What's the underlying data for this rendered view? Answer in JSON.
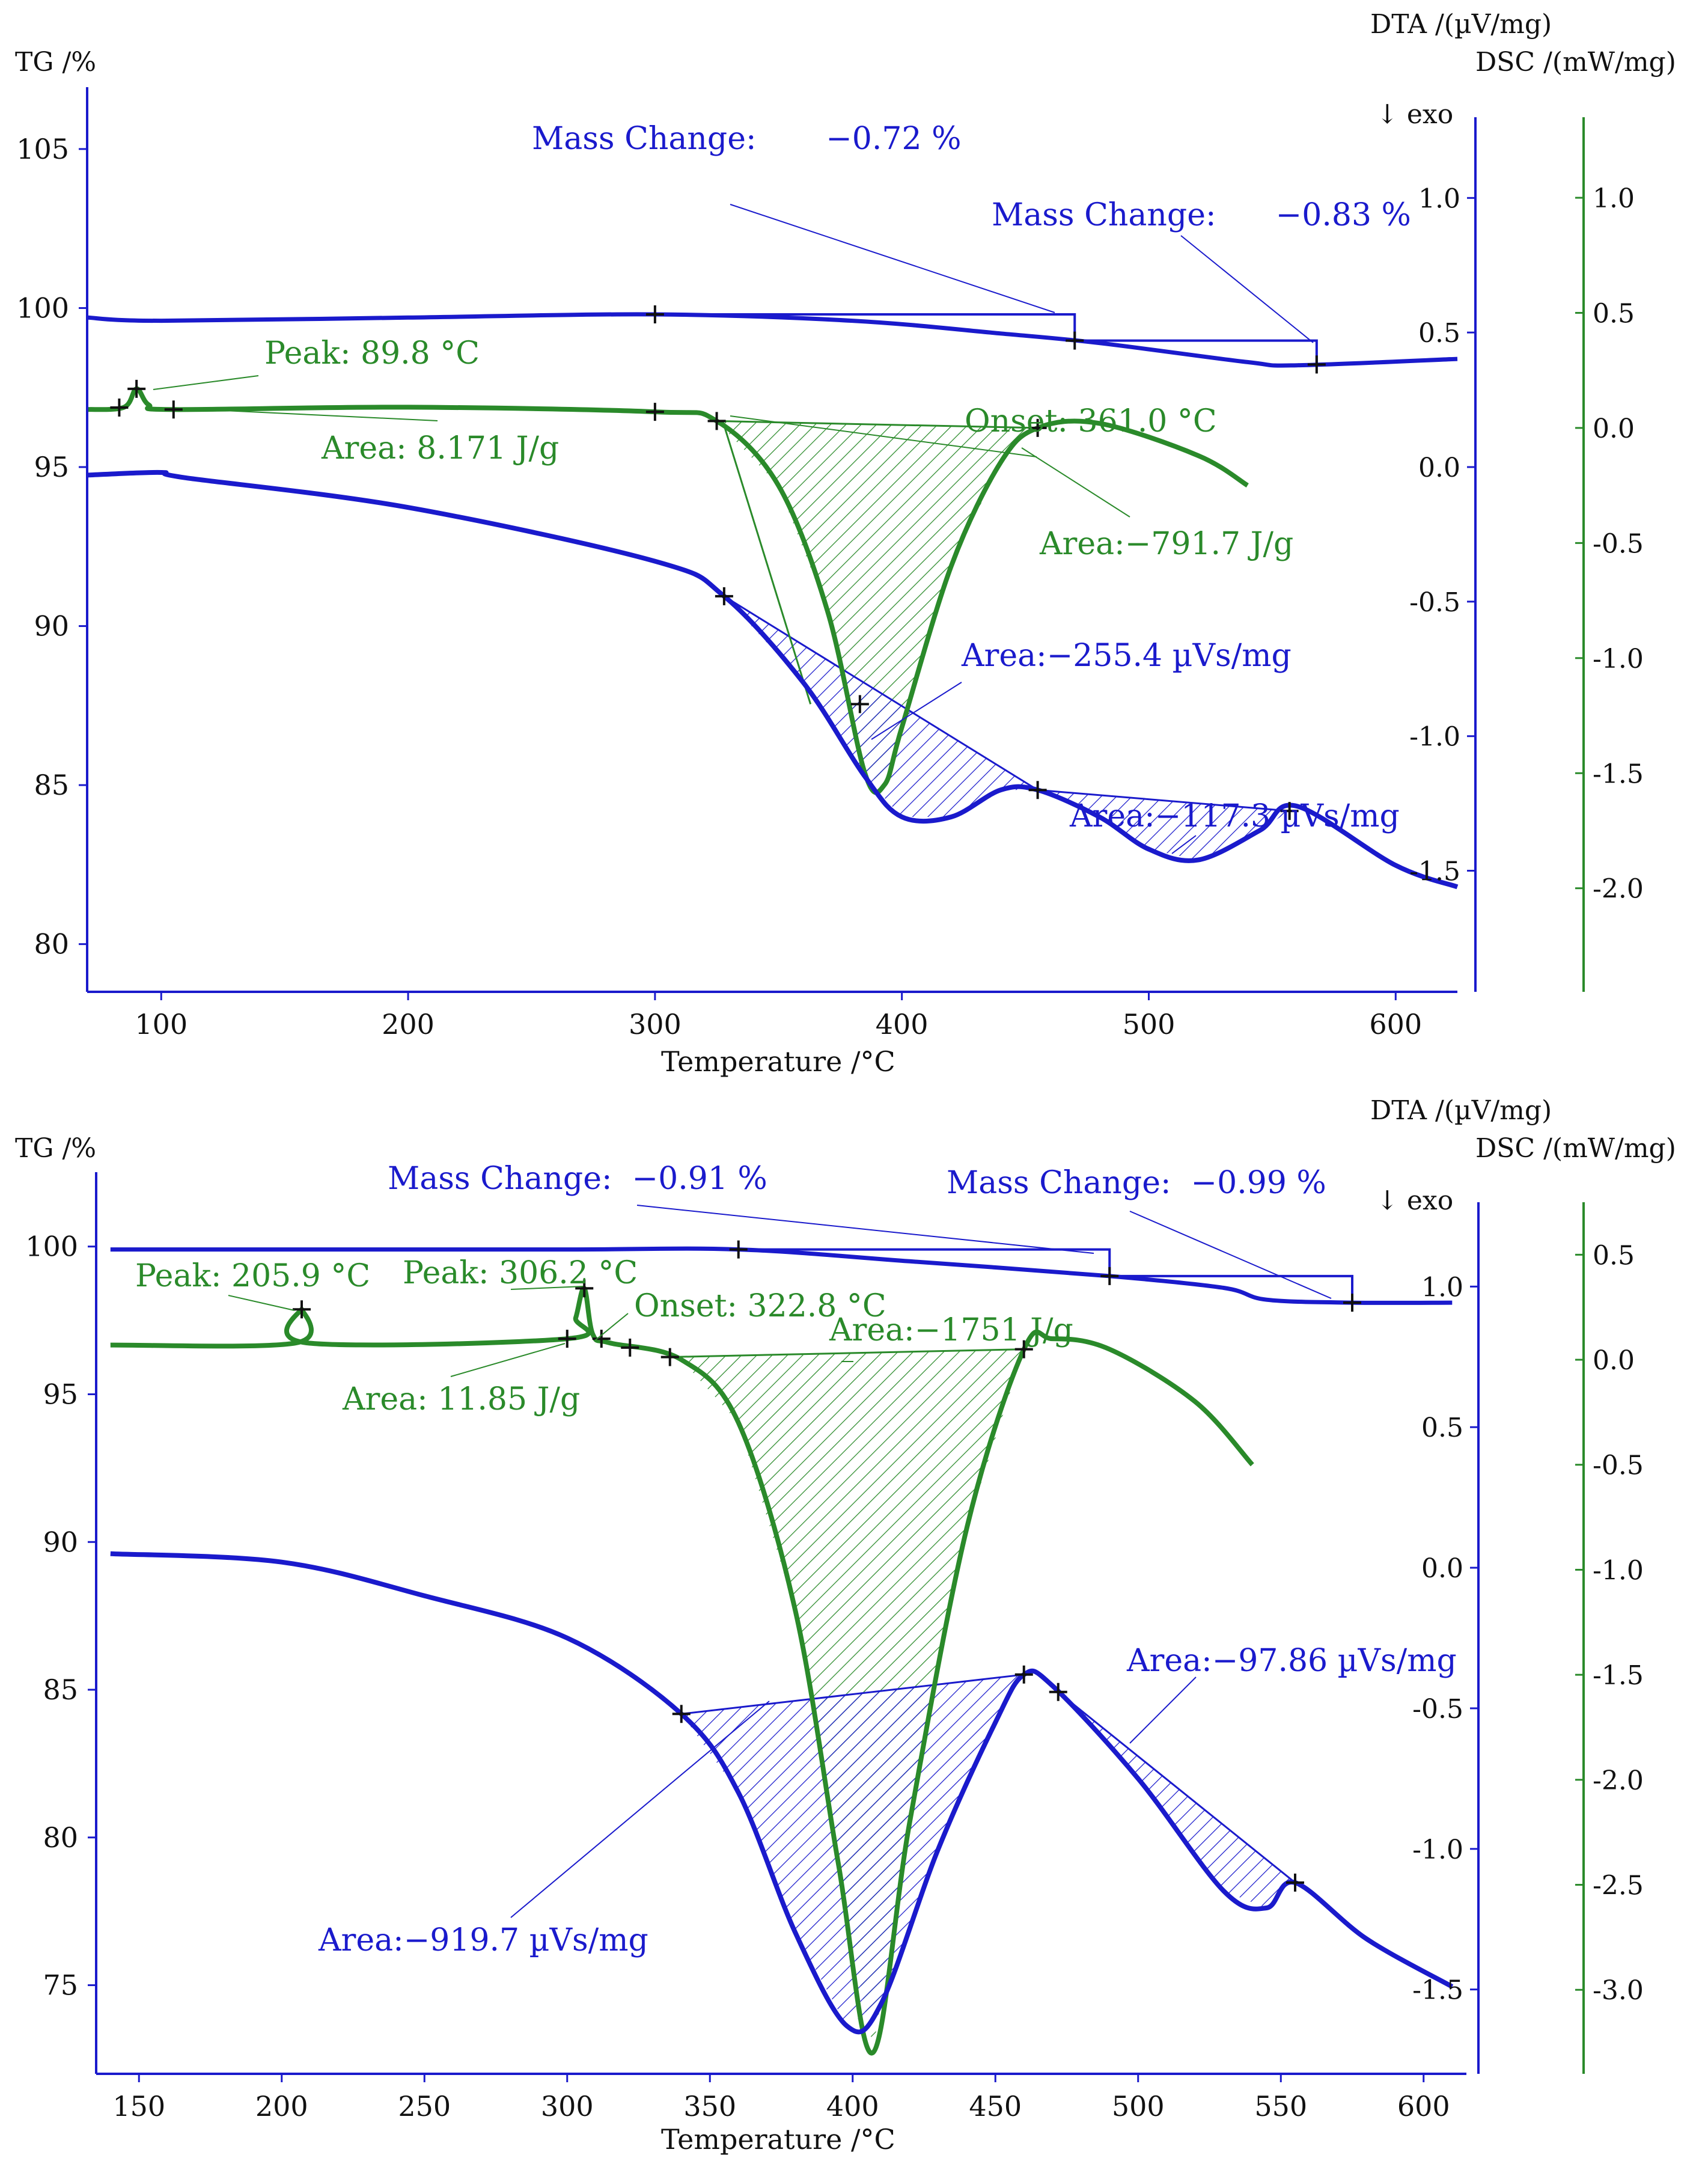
{
  "colors": {
    "tg": "#1a1acc",
    "dta": "#1a1acc",
    "dsc": "#2a8a2a",
    "black": "#111111"
  },
  "chart_data": [
    {
      "type": "line",
      "xlabel": "Temperature /°C",
      "ylabel_left": "TG /%",
      "ylabel_right1": "DTA /(µV/mg)",
      "ylabel_right2": "DSC /(mW/mg)",
      "exo_label": "↓ exo",
      "xlim": [
        70,
        625
      ],
      "tg_ylim": [
        78.5,
        106
      ],
      "dta_ylim": [
        -1.95,
        1.3
      ],
      "dsc_ylim": [
        -2.45,
        1.35
      ],
      "x_ticks": [
        100,
        200,
        300,
        400,
        500,
        600
      ],
      "tg_ticks": [
        80,
        85,
        90,
        95,
        100,
        105
      ],
      "dta_ticks": [
        -1.5,
        -1.0,
        -0.5,
        0.0,
        0.5,
        1.0
      ],
      "dsc_ticks": [
        -2.0,
        -1.5,
        -1.0,
        -0.5,
        0.0,
        0.5,
        1.0
      ],
      "tick_labels": {
        "x": [
          "100",
          "200",
          "300",
          "400",
          "500",
          "600"
        ],
        "tg": [
          "80",
          "85",
          "90",
          "95",
          "100",
          "105"
        ],
        "dta": [
          "-1.5",
          "-1.0",
          "-0.5",
          "0.0",
          "0.5",
          "1.0"
        ],
        "dsc": [
          "-2.0",
          "-1.5",
          "-1.0",
          "-0.5",
          "0.0",
          "0.5",
          "1.0"
        ]
      },
      "tg": {
        "x": [
          70,
          100,
          200,
          300,
          380,
          440,
          480,
          540,
          560,
          625
        ],
        "y": [
          99.7,
          99.6,
          99.7,
          99.8,
          99.6,
          99.2,
          98.9,
          98.3,
          98.2,
          98.4
        ]
      },
      "dsc": {
        "x": [
          70,
          85,
          90,
          95,
          105,
          200,
          300,
          325,
          350,
          370,
          385,
          393,
          400,
          420,
          440,
          455,
          480,
          520,
          540
        ],
        "y": [
          0.08,
          0.09,
          0.17,
          0.1,
          0.08,
          0.09,
          0.07,
          0.03,
          -0.25,
          -0.8,
          -1.5,
          -1.55,
          -1.3,
          -0.6,
          -0.15,
          0.0,
          0.02,
          -0.12,
          -0.25
        ]
      },
      "dta": {
        "x": [
          70,
          100,
          110,
          200,
          300,
          328,
          360,
          385,
          400,
          420,
          440,
          455,
          480,
          500,
          520,
          545,
          560,
          600,
          625
        ],
        "y": [
          -0.03,
          -0.02,
          -0.04,
          -0.15,
          -0.35,
          -0.48,
          -0.8,
          -1.15,
          -1.3,
          -1.3,
          -1.2,
          -1.2,
          -1.3,
          -1.42,
          -1.46,
          -1.35,
          -1.26,
          -1.48,
          -1.56
        ]
      },
      "annotations": {
        "mass1": "Mass Change:       −0.72 %",
        "mass2": "Mass Change:      −0.83 %",
        "peak": "Peak: 89.8 °C",
        "area_dsc1": "Area: 8.171 J/g",
        "onset": "Onset: 361.0 °C",
        "area_dsc2": "Area:−791.7 J/g",
        "area_dta1": "Area:−255.4 µVs/mg",
        "area_dta2": "Area:−117.3 µVs/mg"
      }
    },
    {
      "type": "line",
      "xlabel": "Temperature /°C",
      "ylabel_left": "TG /%",
      "ylabel_right1": "DTA /(µV/mg)",
      "ylabel_right2": "DSC /(mW/mg)",
      "exo_label": "↓ exo",
      "xlim": [
        135,
        615
      ],
      "tg_ylim": [
        72,
        101.5
      ],
      "dta_ylim": [
        -1.8,
        1.3
      ],
      "dsc_ylim": [
        -3.4,
        0.75
      ],
      "x_ticks": [
        150,
        200,
        250,
        300,
        350,
        400,
        450,
        500,
        550,
        600
      ],
      "tg_ticks": [
        75,
        80,
        85,
        90,
        95,
        100
      ],
      "dta_ticks": [
        -1.5,
        -1.0,
        -0.5,
        0.0,
        0.5,
        1.0
      ],
      "dsc_ticks": [
        -3.0,
        -2.5,
        -2.0,
        -1.5,
        -1.0,
        -0.5,
        0.0,
        0.5
      ],
      "tick_labels": {
        "x": [
          "150",
          "200",
          "250",
          "300",
          "350",
          "400",
          "450",
          "500",
          "550",
          "600"
        ],
        "tg": [
          "75",
          "80",
          "85",
          "90",
          "95",
          "100"
        ],
        "dta": [
          "-1.5",
          "-1.0",
          "-0.5",
          "0.0",
          "0.5",
          "1.0"
        ],
        "dsc": [
          "-3.0",
          "-2.5",
          "-2.0",
          "-1.5",
          "-1.0",
          "-0.5",
          "0.0",
          "0.5"
        ]
      },
      "tg": {
        "x": [
          140,
          200,
          300,
          360,
          420,
          490,
          530,
          545,
          575,
          610
        ],
        "y": [
          99.9,
          99.9,
          99.9,
          99.9,
          99.5,
          99.0,
          98.6,
          98.2,
          98.1,
          98.1
        ]
      },
      "dsc": {
        "x": [
          140,
          205,
          207,
          209,
          300,
          303,
          306,
          309,
          315,
          340,
          360,
          380,
          395,
          407,
          420,
          440,
          460,
          470,
          490,
          520,
          540
        ],
        "y": [
          0.07,
          0.08,
          0.24,
          0.08,
          0.1,
          0.2,
          0.34,
          0.12,
          0.08,
          0.0,
          -0.3,
          -1.2,
          -2.4,
          -3.3,
          -2.2,
          -0.8,
          0.05,
          0.1,
          0.05,
          -0.2,
          -0.5
        ]
      },
      "dta": {
        "x": [
          140,
          200,
          250,
          300,
          340,
          360,
          380,
          398,
          410,
          430,
          450,
          460,
          470,
          500,
          530,
          545,
          555,
          580,
          610
        ],
        "y": [
          0.05,
          0.02,
          -0.1,
          -0.25,
          -0.52,
          -0.8,
          -1.3,
          -1.63,
          -1.55,
          -1.0,
          -0.55,
          -0.38,
          -0.42,
          -0.75,
          -1.15,
          -1.21,
          -1.12,
          -1.32,
          -1.49
        ]
      },
      "annotations": {
        "mass1": "Mass Change:  −0.91 %",
        "mass2": "Mass Change:  −0.99 %",
        "peak1": "Peak: 205.9 °C",
        "peak2": "Peak: 306.2 °C",
        "onset": "Onset: 322.8 °C",
        "area_dsc1": "Area: 11.85 J/g",
        "area_dsc2": "Area:−1751 J/g",
        "area_dta1": "Area:−919.7 µVs/mg",
        "area_dta2": "Area:−97.86 µVs/mg"
      }
    }
  ]
}
